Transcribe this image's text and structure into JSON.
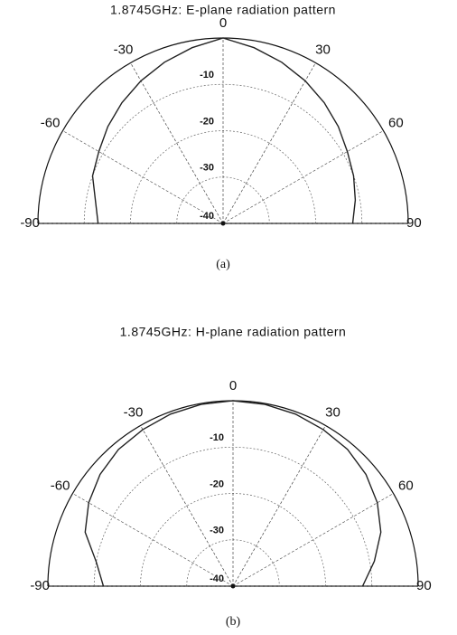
{
  "chart_data": [
    {
      "type": "polar",
      "title": "1.8745GHz: E-plane radiation pattern",
      "caption": "(a)",
      "x": [
        -90,
        -80,
        -70,
        -60,
        -50,
        -40,
        -30,
        -20,
        -10,
        0,
        10,
        20,
        30,
        40,
        50,
        60,
        70,
        80,
        90
      ],
      "values": [
        -13,
        -12,
        -10,
        -9,
        -7.5,
        -6,
        -4.5,
        -3,
        -1.5,
        0,
        -1.5,
        -3,
        -4.5,
        -6,
        -7.5,
        -9,
        -10,
        -11,
        -12
      ],
      "color": "#222222",
      "xticks": [
        -90,
        -60,
        -30,
        0,
        30,
        60,
        90
      ],
      "ylim": [
        -40,
        0
      ],
      "yticks": [
        -10,
        -20,
        -30,
        -40
      ],
      "grid": true
    },
    {
      "type": "polar",
      "title": "1.8745GHz: H-plane radiation pattern",
      "caption": "(b)",
      "x": [
        -90,
        -80,
        -70,
        -60,
        -50,
        -40,
        -30,
        -20,
        -10,
        0,
        10,
        20,
        30,
        40,
        50,
        60,
        70,
        80,
        90
      ],
      "values": [
        -12,
        -10,
        -6,
        -4,
        -2.5,
        -1.5,
        -1,
        -0.5,
        -0.2,
        0,
        -0.2,
        -0.5,
        -1,
        -1.5,
        -2.5,
        -4,
        -6,
        -9,
        -12
      ],
      "color": "#222222",
      "xticks": [
        -90,
        -60,
        -30,
        0,
        30,
        60,
        90
      ],
      "ylim": [
        -40,
        0
      ],
      "yticks": [
        -10,
        -20,
        -30,
        -40
      ],
      "grid": true
    }
  ]
}
